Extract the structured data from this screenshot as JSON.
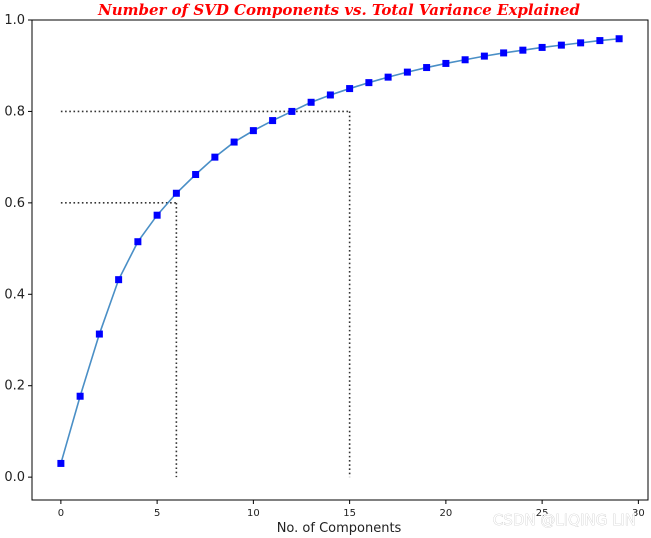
{
  "chart_data": {
    "type": "line",
    "title": "Number of SVD Components vs. Total Variance Explained",
    "xlabel": "No. of Components",
    "ylabel": "",
    "xlim": [
      -1.5,
      30.5
    ],
    "ylim": [
      -0.05,
      1.0
    ],
    "xticks": [
      0,
      5,
      10,
      15,
      20,
      25,
      30
    ],
    "yticks": [
      0.0,
      0.2,
      0.4,
      0.6,
      0.8,
      1.0
    ],
    "grid": false,
    "colors": {
      "line": "#4a8fc6",
      "marker": "#0000ff",
      "title": "#ff0000",
      "reference": "#333333"
    },
    "series": [
      {
        "marker": "square",
        "x": [
          0,
          1,
          2,
          3,
          4,
          5,
          6,
          7,
          8,
          9,
          10,
          11,
          12,
          13,
          14,
          15,
          16,
          17,
          18,
          19,
          20,
          21,
          22,
          23,
          24,
          25,
          26,
          27,
          28,
          29
        ],
        "values": [
          0.03,
          0.177,
          0.313,
          0.432,
          0.515,
          0.573,
          0.621,
          0.662,
          0.7,
          0.733,
          0.758,
          0.78,
          0.8,
          0.82,
          0.836,
          0.85,
          0.863,
          0.875,
          0.886,
          0.896,
          0.905,
          0.913,
          0.921,
          0.928,
          0.934,
          0.94,
          0.945,
          0.95,
          0.955,
          0.959
        ]
      }
    ],
    "reference_lines": [
      {
        "x": 6,
        "y": 0.6
      },
      {
        "x": 15,
        "y": 0.8
      }
    ]
  },
  "watermark": "CSDN @LIQING LIN"
}
